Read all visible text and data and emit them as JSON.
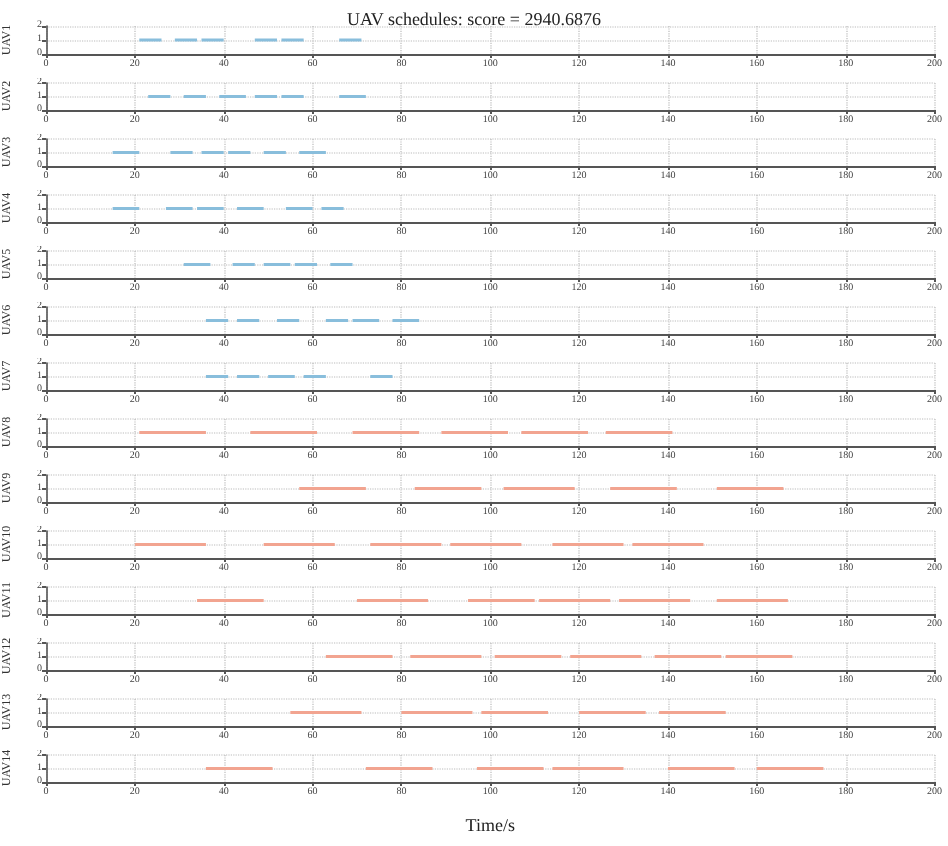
{
  "chart_data": [
    {
      "type": "line",
      "title": "UAV schedules: score = 2940.6876",
      "ylabel": "UAV1",
      "color": "#89bedc",
      "series": [
        {
          "x": [
            21,
            26
          ],
          "values": [
            1,
            1
          ]
        },
        {
          "x": [
            29,
            34
          ],
          "values": [
            1,
            1
          ]
        },
        {
          "x": [
            35,
            40
          ],
          "values": [
            1,
            1
          ]
        },
        {
          "x": [
            47,
            52
          ],
          "values": [
            1,
            1
          ]
        },
        {
          "x": [
            53,
            58
          ],
          "values": [
            1,
            1
          ]
        },
        {
          "x": [
            66,
            71
          ],
          "values": [
            1,
            1
          ]
        }
      ],
      "xlim": [
        0,
        200
      ],
      "xticks": [
        0,
        20,
        40,
        60,
        80,
        100,
        120,
        140,
        160,
        180,
        200
      ],
      "ylim": [
        0,
        2
      ],
      "yticks": [
        0,
        1,
        2
      ],
      "grid": true
    },
    {
      "type": "line",
      "ylabel": "UAV2",
      "color": "#89bedc",
      "series": [
        {
          "x": [
            23,
            28
          ],
          "values": [
            1,
            1
          ]
        },
        {
          "x": [
            31,
            36
          ],
          "values": [
            1,
            1
          ]
        },
        {
          "x": [
            39,
            45
          ],
          "values": [
            1,
            1
          ]
        },
        {
          "x": [
            47,
            52
          ],
          "values": [
            1,
            1
          ]
        },
        {
          "x": [
            53,
            58
          ],
          "values": [
            1,
            1
          ]
        },
        {
          "x": [
            66,
            72
          ],
          "values": [
            1,
            1
          ]
        }
      ],
      "xlim": [
        0,
        200
      ],
      "xticks": [
        0,
        20,
        40,
        60,
        80,
        100,
        120,
        140,
        160,
        180,
        200
      ],
      "ylim": [
        0,
        2
      ],
      "yticks": [
        0,
        1,
        2
      ],
      "grid": true
    },
    {
      "type": "line",
      "ylabel": "UAV3",
      "color": "#89bedc",
      "series": [
        {
          "x": [
            15,
            21
          ],
          "values": [
            1,
            1
          ]
        },
        {
          "x": [
            28,
            33
          ],
          "values": [
            1,
            1
          ]
        },
        {
          "x": [
            35,
            40
          ],
          "values": [
            1,
            1
          ]
        },
        {
          "x": [
            41,
            46
          ],
          "values": [
            1,
            1
          ]
        },
        {
          "x": [
            49,
            54
          ],
          "values": [
            1,
            1
          ]
        },
        {
          "x": [
            57,
            63
          ],
          "values": [
            1,
            1
          ]
        }
      ],
      "xlim": [
        0,
        200
      ],
      "xticks": [
        0,
        20,
        40,
        60,
        80,
        100,
        120,
        140,
        160,
        180,
        200
      ],
      "ylim": [
        0,
        2
      ],
      "yticks": [
        0,
        1,
        2
      ],
      "grid": true
    },
    {
      "type": "line",
      "ylabel": "UAV4",
      "color": "#89bedc",
      "series": [
        {
          "x": [
            15,
            21
          ],
          "values": [
            1,
            1
          ]
        },
        {
          "x": [
            27,
            33
          ],
          "values": [
            1,
            1
          ]
        },
        {
          "x": [
            34,
            40
          ],
          "values": [
            1,
            1
          ]
        },
        {
          "x": [
            43,
            49
          ],
          "values": [
            1,
            1
          ]
        },
        {
          "x": [
            54,
            60
          ],
          "values": [
            1,
            1
          ]
        },
        {
          "x": [
            62,
            67
          ],
          "values": [
            1,
            1
          ]
        }
      ],
      "xlim": [
        0,
        200
      ],
      "xticks": [
        0,
        20,
        40,
        60,
        80,
        100,
        120,
        140,
        160,
        180,
        200
      ],
      "ylim": [
        0,
        2
      ],
      "yticks": [
        0,
        1,
        2
      ],
      "grid": true
    },
    {
      "type": "line",
      "ylabel": "UAV5",
      "color": "#89bedc",
      "series": [
        {
          "x": [
            31,
            37
          ],
          "values": [
            1,
            1
          ]
        },
        {
          "x": [
            42,
            47
          ],
          "values": [
            1,
            1
          ]
        },
        {
          "x": [
            49,
            55
          ],
          "values": [
            1,
            1
          ]
        },
        {
          "x": [
            56,
            61
          ],
          "values": [
            1,
            1
          ]
        },
        {
          "x": [
            64,
            69
          ],
          "values": [
            1,
            1
          ]
        }
      ],
      "xlim": [
        0,
        200
      ],
      "xticks": [
        0,
        20,
        40,
        60,
        80,
        100,
        120,
        140,
        160,
        180,
        200
      ],
      "ylim": [
        0,
        2
      ],
      "yticks": [
        0,
        1,
        2
      ],
      "grid": true
    },
    {
      "type": "line",
      "ylabel": "UAV6",
      "color": "#89bedc",
      "series": [
        {
          "x": [
            36,
            41
          ],
          "values": [
            1,
            1
          ]
        },
        {
          "x": [
            43,
            48
          ],
          "values": [
            1,
            1
          ]
        },
        {
          "x": [
            52,
            57
          ],
          "values": [
            1,
            1
          ]
        },
        {
          "x": [
            63,
            68
          ],
          "values": [
            1,
            1
          ]
        },
        {
          "x": [
            69,
            75
          ],
          "values": [
            1,
            1
          ]
        },
        {
          "x": [
            78,
            84
          ],
          "values": [
            1,
            1
          ]
        }
      ],
      "xlim": [
        0,
        200
      ],
      "xticks": [
        0,
        20,
        40,
        60,
        80,
        100,
        120,
        140,
        160,
        180,
        200
      ],
      "ylim": [
        0,
        2
      ],
      "yticks": [
        0,
        1,
        2
      ],
      "grid": true
    },
    {
      "type": "line",
      "ylabel": "UAV7",
      "color": "#89bedc",
      "series": [
        {
          "x": [
            36,
            41
          ],
          "values": [
            1,
            1
          ]
        },
        {
          "x": [
            43,
            48
          ],
          "values": [
            1,
            1
          ]
        },
        {
          "x": [
            50,
            56
          ],
          "values": [
            1,
            1
          ]
        },
        {
          "x": [
            58,
            63
          ],
          "values": [
            1,
            1
          ]
        },
        {
          "x": [
            73,
            78
          ],
          "values": [
            1,
            1
          ]
        }
      ],
      "xlim": [
        0,
        200
      ],
      "xticks": [
        0,
        20,
        40,
        60,
        80,
        100,
        120,
        140,
        160,
        180,
        200
      ],
      "ylim": [
        0,
        2
      ],
      "yticks": [
        0,
        1,
        2
      ],
      "grid": true
    },
    {
      "type": "line",
      "ylabel": "UAV8",
      "color": "#f2a490",
      "series": [
        {
          "x": [
            21,
            36
          ],
          "values": [
            1,
            1
          ]
        },
        {
          "x": [
            46,
            61
          ],
          "values": [
            1,
            1
          ]
        },
        {
          "x": [
            69,
            84
          ],
          "values": [
            1,
            1
          ]
        },
        {
          "x": [
            89,
            104
          ],
          "values": [
            1,
            1
          ]
        },
        {
          "x": [
            107,
            122
          ],
          "values": [
            1,
            1
          ]
        },
        {
          "x": [
            126,
            141
          ],
          "values": [
            1,
            1
          ]
        }
      ],
      "xlim": [
        0,
        200
      ],
      "xticks": [
        0,
        20,
        40,
        60,
        80,
        100,
        120,
        140,
        160,
        180,
        200
      ],
      "ylim": [
        0,
        2
      ],
      "yticks": [
        0,
        1,
        2
      ],
      "grid": true
    },
    {
      "type": "line",
      "ylabel": "UAV9",
      "color": "#f2a490",
      "series": [
        {
          "x": [
            57,
            72
          ],
          "values": [
            1,
            1
          ]
        },
        {
          "x": [
            83,
            98
          ],
          "values": [
            1,
            1
          ]
        },
        {
          "x": [
            103,
            119
          ],
          "values": [
            1,
            1
          ]
        },
        {
          "x": [
            127,
            142
          ],
          "values": [
            1,
            1
          ]
        },
        {
          "x": [
            151,
            166
          ],
          "values": [
            1,
            1
          ]
        }
      ],
      "xlim": [
        0,
        200
      ],
      "xticks": [
        0,
        20,
        40,
        60,
        80,
        100,
        120,
        140,
        160,
        180,
        200
      ],
      "ylim": [
        0,
        2
      ],
      "yticks": [
        0,
        1,
        2
      ],
      "grid": true
    },
    {
      "type": "line",
      "ylabel": "UAV10",
      "color": "#f2a490",
      "series": [
        {
          "x": [
            20,
            36
          ],
          "values": [
            1,
            1
          ]
        },
        {
          "x": [
            49,
            65
          ],
          "values": [
            1,
            1
          ]
        },
        {
          "x": [
            73,
            89
          ],
          "values": [
            1,
            1
          ]
        },
        {
          "x": [
            91,
            107
          ],
          "values": [
            1,
            1
          ]
        },
        {
          "x": [
            114,
            130
          ],
          "values": [
            1,
            1
          ]
        },
        {
          "x": [
            132,
            148
          ],
          "values": [
            1,
            1
          ]
        }
      ],
      "xlim": [
        0,
        200
      ],
      "xticks": [
        0,
        20,
        40,
        60,
        80,
        100,
        120,
        140,
        160,
        180,
        200
      ],
      "ylim": [
        0,
        2
      ],
      "yticks": [
        0,
        1,
        2
      ],
      "grid": true
    },
    {
      "type": "line",
      "ylabel": "UAV11",
      "color": "#f2a490",
      "series": [
        {
          "x": [
            34,
            49
          ],
          "values": [
            1,
            1
          ]
        },
        {
          "x": [
            70,
            86
          ],
          "values": [
            1,
            1
          ]
        },
        {
          "x": [
            95,
            110
          ],
          "values": [
            1,
            1
          ]
        },
        {
          "x": [
            111,
            127
          ],
          "values": [
            1,
            1
          ]
        },
        {
          "x": [
            129,
            145
          ],
          "values": [
            1,
            1
          ]
        },
        {
          "x": [
            151,
            167
          ],
          "values": [
            1,
            1
          ]
        }
      ],
      "xlim": [
        0,
        200
      ],
      "xticks": [
        0,
        20,
        40,
        60,
        80,
        100,
        120,
        140,
        160,
        180,
        200
      ],
      "ylim": [
        0,
        2
      ],
      "yticks": [
        0,
        1,
        2
      ],
      "grid": true
    },
    {
      "type": "line",
      "ylabel": "UAV12",
      "color": "#f2a490",
      "series": [
        {
          "x": [
            63,
            78
          ],
          "values": [
            1,
            1
          ]
        },
        {
          "x": [
            82,
            98
          ],
          "values": [
            1,
            1
          ]
        },
        {
          "x": [
            101,
            116
          ],
          "values": [
            1,
            1
          ]
        },
        {
          "x": [
            118,
            134
          ],
          "values": [
            1,
            1
          ]
        },
        {
          "x": [
            137,
            152
          ],
          "values": [
            1,
            1
          ]
        },
        {
          "x": [
            153,
            168
          ],
          "values": [
            1,
            1
          ]
        }
      ],
      "xlim": [
        0,
        200
      ],
      "xticks": [
        0,
        20,
        40,
        60,
        80,
        100,
        120,
        140,
        160,
        180,
        200
      ],
      "ylim": [
        0,
        2
      ],
      "yticks": [
        0,
        1,
        2
      ],
      "grid": true
    },
    {
      "type": "line",
      "ylabel": "UAV13",
      "color": "#f2a490",
      "series": [
        {
          "x": [
            55,
            71
          ],
          "values": [
            1,
            1
          ]
        },
        {
          "x": [
            80,
            96
          ],
          "values": [
            1,
            1
          ]
        },
        {
          "x": [
            98,
            113
          ],
          "values": [
            1,
            1
          ]
        },
        {
          "x": [
            120,
            135
          ],
          "values": [
            1,
            1
          ]
        },
        {
          "x": [
            138,
            153
          ],
          "values": [
            1,
            1
          ]
        }
      ],
      "xlim": [
        0,
        200
      ],
      "xticks": [
        0,
        20,
        40,
        60,
        80,
        100,
        120,
        140,
        160,
        180,
        200
      ],
      "ylim": [
        0,
        2
      ],
      "yticks": [
        0,
        1,
        2
      ],
      "grid": true
    },
    {
      "type": "line",
      "xlabel": "Time/s",
      "ylabel": "UAV14",
      "color": "#f2a490",
      "series": [
        {
          "x": [
            36,
            51
          ],
          "values": [
            1,
            1
          ]
        },
        {
          "x": [
            72,
            87
          ],
          "values": [
            1,
            1
          ]
        },
        {
          "x": [
            97,
            112
          ],
          "values": [
            1,
            1
          ]
        },
        {
          "x": [
            114,
            130
          ],
          "values": [
            1,
            1
          ]
        },
        {
          "x": [
            140,
            155
          ],
          "values": [
            1,
            1
          ]
        },
        {
          "x": [
            160,
            175
          ],
          "values": [
            1,
            1
          ]
        }
      ],
      "xlim": [
        0,
        200
      ],
      "xticks": [
        0,
        20,
        40,
        60,
        80,
        100,
        120,
        140,
        160,
        180,
        200
      ],
      "ylim": [
        0,
        2
      ],
      "yticks": [
        0,
        1,
        2
      ],
      "grid": true
    }
  ]
}
